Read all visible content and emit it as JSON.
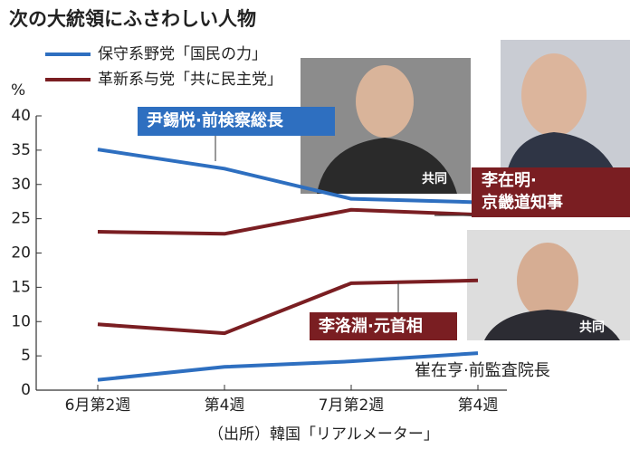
{
  "chart_data": {
    "type": "line",
    "title": "次の大統領にふさわしい人物",
    "y_axis_label": "%",
    "source": "（出所）韓国「リアルメーター」",
    "legend": [
      {
        "name": "保守系野党「国民の力」",
        "color": "#2e6fc0"
      },
      {
        "name": "革新系与党「共に民主党」",
        "color": "#7a1e22"
      }
    ],
    "categories": [
      "6月第2週",
      "第4週",
      "7月第2週",
      "第4週"
    ],
    "series": [
      {
        "name": "尹錫悦·前検察総長",
        "color": "#2e6fc0",
        "values": [
          35.1,
          32.3,
          27.9,
          27.4
        ]
      },
      {
        "name": "李在明·\n京畿道知事",
        "color": "#7a1e22",
        "values": [
          23.1,
          22.8,
          26.3,
          25.6
        ]
      },
      {
        "name": "李洛淵·元首相",
        "color": "#7a1e22",
        "values": [
          9.6,
          8.3,
          15.6,
          16.0
        ]
      },
      {
        "name": "崔在亨·前監査院長",
        "color": "#2e6fc0",
        "values": [
          1.5,
          3.4,
          4.2,
          5.4
        ]
      }
    ],
    "photo_credits": [
      "共同",
      "共同"
    ],
    "ylim": [
      0,
      40
    ],
    "yticks": [
      0,
      5,
      10,
      15,
      20,
      25,
      30,
      35,
      40
    ],
    "grid": false
  }
}
